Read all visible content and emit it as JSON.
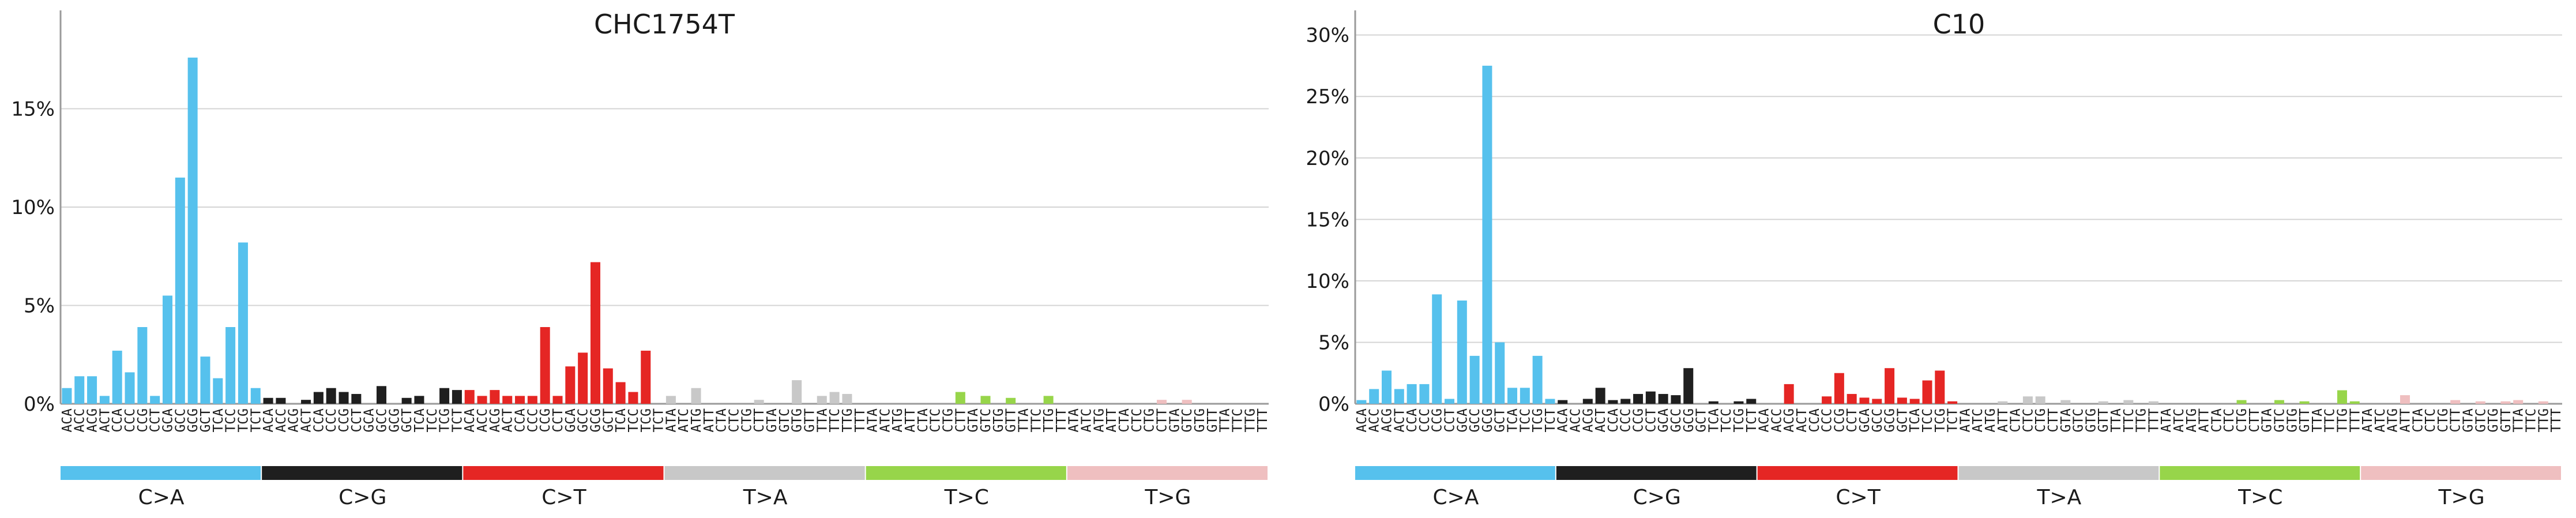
{
  "chart_data": [
    {
      "type": "bar",
      "title": "CHC1754T",
      "xlabel": "",
      "ylabel": "",
      "ylim": [
        0,
        20
      ],
      "yticks": [
        0,
        5,
        10,
        15
      ],
      "ytick_labels": [
        "0%",
        "5%",
        "10%",
        "15%"
      ],
      "grid": true,
      "groups": [
        {
          "name": "C>A",
          "color": "#56c1ed"
        },
        {
          "name": "C>G",
          "color": "#1f1f1f"
        },
        {
          "name": "C>T",
          "color": "#e52624"
        },
        {
          "name": "T>A",
          "color": "#c8c8c8"
        },
        {
          "name": "T>C",
          "color": "#97d54a"
        },
        {
          "name": "T>G",
          "color": "#efbfc0"
        }
      ],
      "categories": [
        "ACA",
        "ACC",
        "ACG",
        "ACT",
        "CCA",
        "CCC",
        "CCG",
        "CCT",
        "GCA",
        "GCC",
        "GCG",
        "GCT",
        "TCA",
        "TCC",
        "TCG",
        "TCT",
        "ACA",
        "ACC",
        "ACG",
        "ACT",
        "CCA",
        "CCC",
        "CCG",
        "CCT",
        "GCA",
        "GCC",
        "GCG",
        "GCT",
        "TCA",
        "TCC",
        "TCG",
        "TCT",
        "ACA",
        "ACC",
        "ACG",
        "ACT",
        "CCA",
        "CCC",
        "CCG",
        "CCT",
        "GCA",
        "GCC",
        "GCG",
        "GCT",
        "TCA",
        "TCC",
        "TCG",
        "TCT",
        "ATA",
        "ATC",
        "ATG",
        "ATT",
        "CTA",
        "CTC",
        "CTG",
        "CTT",
        "GTA",
        "GTC",
        "GTG",
        "GTT",
        "TTA",
        "TTC",
        "TTG",
        "TTT",
        "ATA",
        "ATC",
        "ATG",
        "ATT",
        "CTA",
        "CTC",
        "CTG",
        "CTT",
        "GTA",
        "GTC",
        "GTG",
        "GTT",
        "TTA",
        "TTC",
        "TTG",
        "TTT",
        "ATA",
        "ATC",
        "ATG",
        "ATT",
        "CTA",
        "CTC",
        "CTG",
        "CTT",
        "GTA",
        "GTC",
        "GTG",
        "GTT",
        "TTA",
        "TTC",
        "TTG",
        "TTT"
      ],
      "values": [
        0.8,
        1.4,
        1.4,
        0.4,
        2.7,
        1.6,
        3.9,
        0.4,
        5.5,
        11.5,
        17.6,
        2.4,
        1.3,
        3.9,
        8.2,
        0.8,
        0.3,
        0.3,
        0.0,
        0.2,
        0.6,
        0.8,
        0.6,
        0.5,
        0.0,
        0.9,
        0.0,
        0.3,
        0.4,
        0.0,
        0.8,
        0.7,
        0.7,
        0.4,
        0.7,
        0.4,
        0.4,
        0.4,
        3.9,
        0.4,
        1.9,
        2.6,
        7.2,
        1.8,
        1.1,
        0.6,
        2.7,
        0.0,
        0.4,
        0.0,
        0.8,
        0.0,
        0.0,
        0.0,
        0.0,
        0.2,
        0.0,
        0.0,
        1.2,
        0.0,
        0.4,
        0.6,
        0.5,
        0.0,
        0.0,
        0.0,
        0.0,
        0.0,
        0.0,
        0.0,
        0.0,
        0.6,
        0.0,
        0.4,
        0.0,
        0.3,
        0.0,
        0.0,
        0.4,
        0.0,
        0.0,
        0.0,
        0.0,
        0.0,
        0.0,
        0.0,
        0.0,
        0.2,
        0.0,
        0.2,
        0.0,
        0.0,
        0.0,
        0.0,
        0.0,
        0.0
      ]
    },
    {
      "type": "bar",
      "title": "C10",
      "xlabel": "",
      "ylabel": "",
      "ylim": [
        0,
        32
      ],
      "yticks": [
        0,
        5,
        10,
        15,
        20,
        25,
        30
      ],
      "ytick_labels": [
        "0%",
        "5%",
        "10%",
        "15%",
        "20%",
        "25%",
        "30%"
      ],
      "grid": true,
      "groups": [
        {
          "name": "C>A",
          "color": "#56c1ed"
        },
        {
          "name": "C>G",
          "color": "#1f1f1f"
        },
        {
          "name": "C>T",
          "color": "#e52624"
        },
        {
          "name": "T>A",
          "color": "#c8c8c8"
        },
        {
          "name": "T>C",
          "color": "#97d54a"
        },
        {
          "name": "T>G",
          "color": "#efbfc0"
        }
      ],
      "categories": [
        "ACA",
        "ACC",
        "ACG",
        "ACT",
        "CCA",
        "CCC",
        "CCG",
        "CCT",
        "GCA",
        "GCC",
        "GCG",
        "GCT",
        "TCA",
        "TCC",
        "TCG",
        "TCT",
        "ACA",
        "ACC",
        "ACG",
        "ACT",
        "CCA",
        "CCC",
        "CCG",
        "CCT",
        "GCA",
        "GCC",
        "GCG",
        "GCT",
        "TCA",
        "TCC",
        "TCG",
        "TCT",
        "ACA",
        "ACC",
        "ACG",
        "ACT",
        "CCA",
        "CCC",
        "CCG",
        "CCT",
        "GCA",
        "GCC",
        "GCG",
        "GCT",
        "TCA",
        "TCC",
        "TCG",
        "TCT",
        "ATA",
        "ATC",
        "ATG",
        "ATT",
        "CTA",
        "CTC",
        "CTG",
        "CTT",
        "GTA",
        "GTC",
        "GTG",
        "GTT",
        "TTA",
        "TTC",
        "TTG",
        "TTT",
        "ATA",
        "ATC",
        "ATG",
        "ATT",
        "CTA",
        "CTC",
        "CTG",
        "CTT",
        "GTA",
        "GTC",
        "GTG",
        "GTT",
        "TTA",
        "TTC",
        "TTG",
        "TTT",
        "ATA",
        "ATC",
        "ATG",
        "ATT",
        "CTA",
        "CTC",
        "CTG",
        "CTT",
        "GTA",
        "GTC",
        "GTG",
        "GTT",
        "TTA",
        "TTC",
        "TTG",
        "TTT"
      ],
      "values": [
        0.3,
        1.2,
        2.7,
        1.2,
        1.6,
        1.6,
        8.9,
        0.4,
        8.4,
        3.9,
        27.5,
        5.0,
        1.3,
        1.3,
        3.9,
        0.4,
        0.3,
        0.0,
        0.4,
        1.3,
        0.3,
        0.4,
        0.8,
        1.0,
        0.8,
        0.7,
        2.9,
        0.0,
        0.2,
        0.0,
        0.2,
        0.4,
        0.0,
        0.0,
        1.6,
        0.0,
        0.0,
        0.6,
        2.5,
        0.8,
        0.5,
        0.4,
        2.9,
        0.5,
        0.4,
        1.9,
        2.7,
        0.2,
        0.0,
        0.0,
        0.0,
        0.2,
        0.0,
        0.6,
        0.6,
        0.0,
        0.3,
        0.0,
        0.0,
        0.2,
        0.0,
        0.3,
        0.0,
        0.2,
        0.0,
        0.0,
        0.0,
        0.0,
        0.0,
        0.0,
        0.3,
        0.0,
        0.0,
        0.3,
        0.0,
        0.2,
        0.0,
        0.0,
        1.1,
        0.2,
        0.0,
        0.0,
        0.0,
        0.7,
        0.0,
        0.0,
        0.0,
        0.3,
        0.0,
        0.2,
        0.0,
        0.2,
        0.3,
        0.0,
        0.2,
        0.0
      ]
    }
  ]
}
